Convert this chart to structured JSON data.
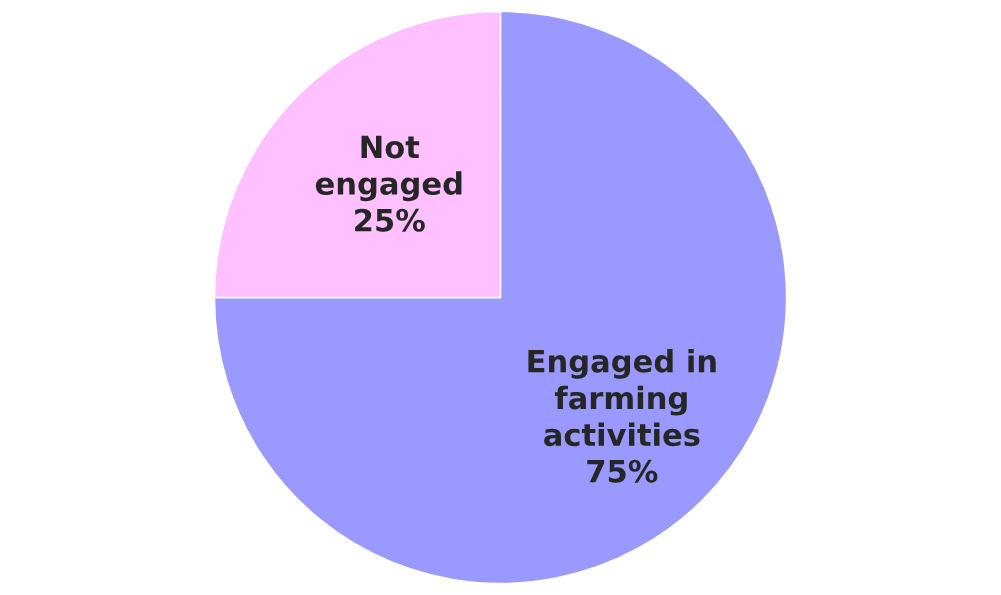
{
  "chart_data": {
    "type": "pie",
    "categories": [
      "Engaged in farming activities",
      "Not engaged"
    ],
    "values": [
      75,
      25
    ],
    "colors": [
      "#9999ff",
      "#ffc0ff"
    ],
    "value_labels": [
      "75%",
      "25%"
    ]
  }
}
